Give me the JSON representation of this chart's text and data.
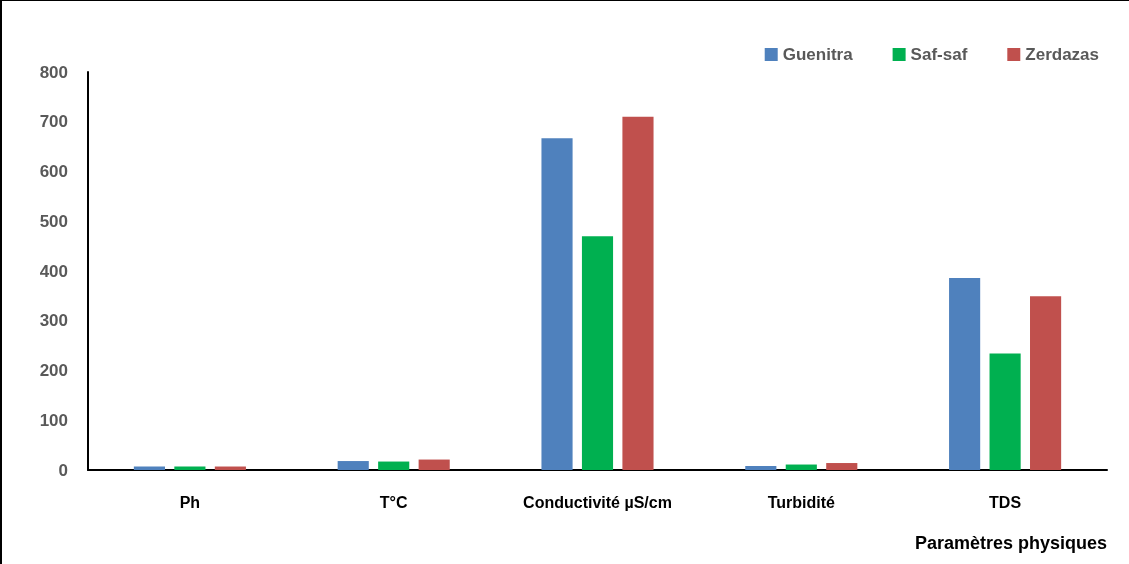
{
  "chart_data": {
    "type": "bar",
    "xlabel": "Paramètres physiques",
    "categories": [
      "Ph",
      "T°C",
      "Conductivité µS/cm",
      "Turbidité",
      "TDS"
    ],
    "series": [
      {
        "name": "Guenitra",
        "color": "#4f81bd",
        "values": [
          7,
          18,
          667,
          8,
          386
        ]
      },
      {
        "name": "Saf-saf",
        "color": "#00b050",
        "values": [
          7,
          17,
          470,
          11,
          234
        ]
      },
      {
        "name": "Zerdazas",
        "color": "#c0504d",
        "values": [
          7,
          21,
          710,
          14,
          349
        ]
      }
    ],
    "ylim": [
      0,
      800
    ],
    "yticks": [
      0,
      100,
      200,
      300,
      400,
      500,
      600,
      700,
      800
    ],
    "grid": false,
    "legend": "top right"
  }
}
